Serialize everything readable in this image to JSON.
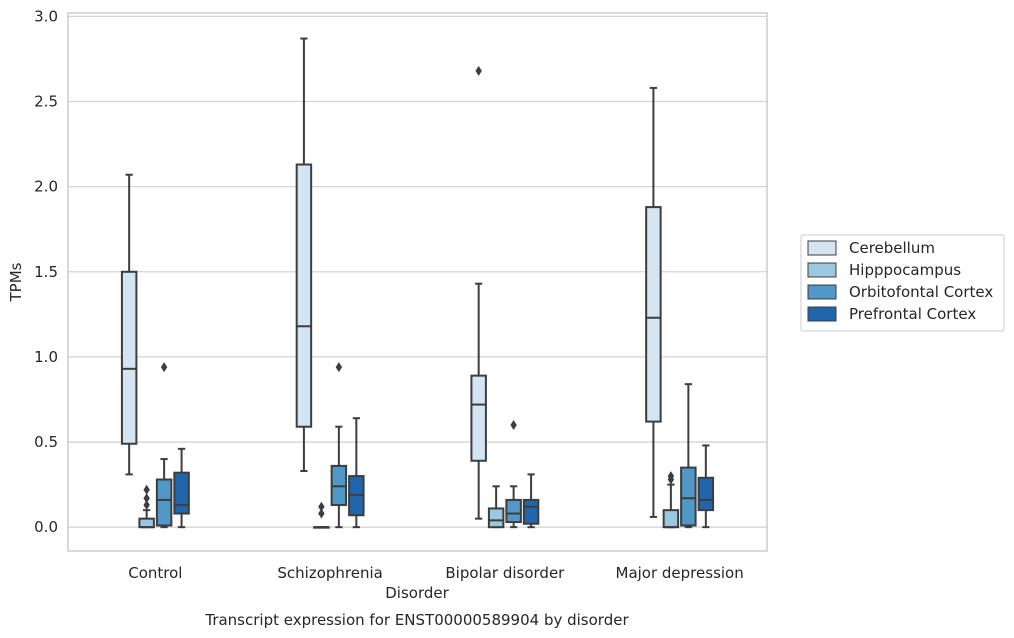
{
  "chart_data": {
    "type": "box",
    "title": "Transcript expression for ENST00000589904 by disorder",
    "xlabel": "Disorder",
    "ylabel": "TPMs",
    "ylim": [
      -0.14,
      3.02
    ],
    "yticks": [
      "0.0",
      "0.5",
      "1.0",
      "1.5",
      "2.0",
      "2.5",
      "3.0"
    ],
    "grid": true,
    "legend_position": "right",
    "categories": [
      "Control",
      "Schizophrenia",
      "Bipolar disorder",
      "Major depression"
    ],
    "series": [
      {
        "name": "Cerebellum",
        "color": "#d3e4f3",
        "boxes": [
          {
            "whislo": 0.31,
            "q1": 0.49,
            "med": 0.93,
            "q3": 1.5,
            "whishi": 2.07,
            "fliers": []
          },
          {
            "whislo": 0.33,
            "q1": 0.59,
            "med": 1.18,
            "q3": 2.13,
            "whishi": 2.87,
            "fliers": []
          },
          {
            "whislo": 0.05,
            "q1": 0.39,
            "med": 0.72,
            "q3": 0.89,
            "whishi": 1.43,
            "fliers": [
              2.68
            ]
          },
          {
            "whislo": 0.06,
            "q1": 0.62,
            "med": 1.23,
            "q3": 1.88,
            "whishi": 2.58,
            "fliers": []
          }
        ]
      },
      {
        "name": "Hipppocampus",
        "color": "#9ac8e0",
        "boxes": [
          {
            "whislo": 0.0,
            "q1": 0.0,
            "med": 0.0,
            "q3": 0.05,
            "whishi": 0.1,
            "fliers": [
              0.13,
              0.17,
              0.22
            ]
          },
          {
            "whislo": 0.0,
            "q1": 0.0,
            "med": 0.0,
            "q3": 0.0,
            "whishi": 0.0,
            "fliers": [
              0.08,
              0.12
            ]
          },
          {
            "whislo": 0.0,
            "q1": 0.0,
            "med": 0.04,
            "q3": 0.11,
            "whishi": 0.24,
            "fliers": []
          },
          {
            "whislo": 0.0,
            "q1": 0.0,
            "med": 0.0,
            "q3": 0.1,
            "whishi": 0.25,
            "fliers": [
              0.28,
              0.3
            ]
          }
        ]
      },
      {
        "name": "Orbitofontal Cortex",
        "color": "#5198c7",
        "boxes": [
          {
            "whislo": 0.0,
            "q1": 0.01,
            "med": 0.16,
            "q3": 0.28,
            "whishi": 0.4,
            "fliers": [
              0.94
            ]
          },
          {
            "whislo": 0.0,
            "q1": 0.13,
            "med": 0.24,
            "q3": 0.36,
            "whishi": 0.59,
            "fliers": [
              0.94
            ]
          },
          {
            "whislo": 0.0,
            "q1": 0.03,
            "med": 0.08,
            "q3": 0.16,
            "whishi": 0.24,
            "fliers": [
              0.6
            ]
          },
          {
            "whislo": 0.0,
            "q1": 0.01,
            "med": 0.17,
            "q3": 0.35,
            "whishi": 0.84,
            "fliers": []
          }
        ]
      },
      {
        "name": "Prefrontal Cortex",
        "color": "#2166ac",
        "boxes": [
          {
            "whislo": 0.0,
            "q1": 0.08,
            "med": 0.13,
            "q3": 0.32,
            "whishi": 0.46,
            "fliers": []
          },
          {
            "whislo": 0.0,
            "q1": 0.07,
            "med": 0.19,
            "q3": 0.3,
            "whishi": 0.64,
            "fliers": []
          },
          {
            "whislo": 0.0,
            "q1": 0.02,
            "med": 0.12,
            "q3": 0.16,
            "whishi": 0.31,
            "fliers": []
          },
          {
            "whislo": 0.0,
            "q1": 0.1,
            "med": 0.16,
            "q3": 0.29,
            "whishi": 0.48,
            "fliers": []
          }
        ]
      }
    ]
  }
}
